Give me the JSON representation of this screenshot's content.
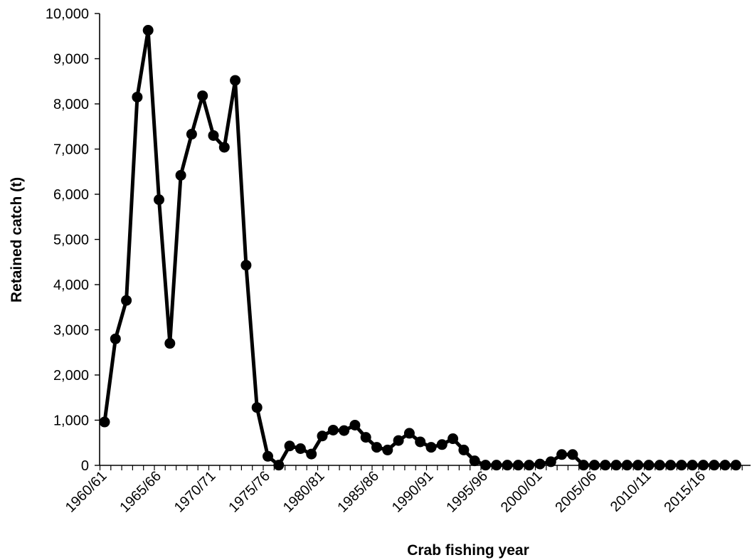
{
  "chart_data": {
    "type": "line",
    "title": "",
    "xlabel": "Crab fishing year",
    "ylabel": "Retained catch (t)",
    "ylim": [
      0,
      10000
    ],
    "yticks": [
      0,
      1000,
      2000,
      3000,
      4000,
      5000,
      6000,
      7000,
      8000,
      9000,
      10000
    ],
    "ytick_labels": [
      "0",
      "1,000",
      "2,000",
      "3,000",
      "4,000",
      "5,000",
      "6,000",
      "7,000",
      "8,000",
      "9,000",
      "10,000"
    ],
    "xtick_labels": [
      "1960/61",
      "1965/66",
      "1970/71",
      "1975/76",
      "1980/81",
      "1985/86",
      "1990/91",
      "1995/96",
      "2000/01",
      "2005/06",
      "2010/11",
      "2015/16"
    ],
    "grid": false,
    "legend": "none",
    "line_color": "#000000",
    "categories": [
      "1960/61",
      "1961/62",
      "1962/63",
      "1963/64",
      "1964/65",
      "1965/66",
      "1966/67",
      "1967/68",
      "1968/69",
      "1969/70",
      "1970/71",
      "1971/72",
      "1972/73",
      "1973/74",
      "1974/75",
      "1975/76",
      "1976/77",
      "1977/78",
      "1978/79",
      "1979/80",
      "1980/81",
      "1981/82",
      "1982/83",
      "1983/84",
      "1984/85",
      "1985/86",
      "1986/87",
      "1987/88",
      "1988/89",
      "1989/90",
      "1990/91",
      "1991/92",
      "1992/93",
      "1993/94",
      "1994/95",
      "1995/96",
      "1996/97",
      "1997/98",
      "1998/99",
      "1999/00",
      "2000/01",
      "2001/02",
      "2002/03",
      "2003/04",
      "2004/05",
      "2005/06",
      "2006/07",
      "2007/08",
      "2008/09",
      "2009/10",
      "2010/11",
      "2011/12",
      "2012/13",
      "2013/14",
      "2014/15",
      "2015/16",
      "2016/17",
      "2017/18",
      "2018/19"
    ],
    "values": [
      960,
      2800,
      3650,
      8150,
      9630,
      5880,
      2700,
      6420,
      7330,
      8180,
      7300,
      7040,
      8520,
      4430,
      1280,
      200,
      5,
      430,
      370,
      250,
      650,
      780,
      770,
      890,
      620,
      400,
      340,
      550,
      710,
      520,
      400,
      460,
      590,
      340,
      100,
      5,
      5,
      5,
      5,
      5,
      30,
      80,
      240,
      240,
      5,
      5,
      5,
      5,
      5,
      5,
      5,
      5,
      5,
      5,
      5,
      5,
      5,
      5,
      5
    ]
  }
}
